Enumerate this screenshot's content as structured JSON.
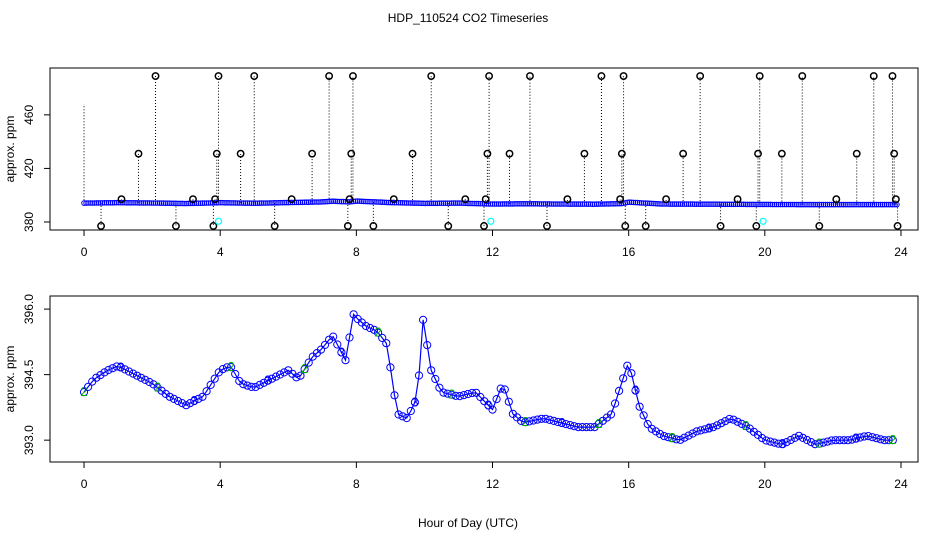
{
  "chart_data": [
    {
      "type": "scatter",
      "title": "HDP_110524  CO2 Timeseries",
      "xlabel": "",
      "ylabel": "approx. ppm",
      "xlim": [
        -1,
        24.5
      ],
      "ylim": [
        374,
        495
      ],
      "x_ticks": [
        0,
        4,
        8,
        12,
        16,
        20,
        24
      ],
      "x_tick_labels": [
        "0",
        "4",
        "8",
        "12",
        "16",
        "20",
        "24"
      ],
      "y_ticks": [
        380,
        420,
        460
      ],
      "y_tick_labels": [
        "380",
        "420",
        "460"
      ],
      "colors": {
        "main_series": "#0000ff",
        "outliers": "#000000",
        "cyan_marks": "#00ffff",
        "drop_lines": "#000000"
      },
      "series": [
        {
          "name": "baseline",
          "x": [
            0,
            1,
            2,
            3,
            4,
            5,
            6,
            7,
            7.3,
            7.8,
            8,
            9,
            10,
            11,
            12,
            13,
            14,
            15,
            15.8,
            16,
            17,
            18,
            19,
            20,
            21,
            22,
            23,
            23.8
          ],
          "values": [
            394.1,
            394.4,
            394.2,
            393.8,
            394.4,
            394.0,
            394.5,
            395.0,
            395.5,
            395.0,
            395.6,
            394.5,
            393.9,
            394.1,
            393.4,
            393.6,
            393.4,
            393.3,
            393.7,
            394.8,
            393.4,
            393.3,
            393.2,
            393.1,
            393.0,
            393.0,
            393.0,
            393.0
          ]
        },
        {
          "name": "outliers",
          "x": [
            0.5,
            1.1,
            1.6,
            2.1,
            2.7,
            3.2,
            3.8,
            3.85,
            3.9,
            3.95,
            4.6,
            5.0,
            5.6,
            6.1,
            6.7,
            7.2,
            7.75,
            7.8,
            7.85,
            7.9,
            8.5,
            9.1,
            9.65,
            10.2,
            10.7,
            11.2,
            11.75,
            11.8,
            11.85,
            11.9,
            12.5,
            13.1,
            13.6,
            14.2,
            14.7,
            15.2,
            15.75,
            15.8,
            15.85,
            15.9,
            16.5,
            17.1,
            17.6,
            18.1,
            18.7,
            19.2,
            19.75,
            19.8,
            19.85,
            20.5,
            21.1,
            21.6,
            22.1,
            22.7,
            23.2,
            23.75,
            23.8,
            23.85,
            23.9
          ],
          "values": [
            377,
            397,
            431,
            489,
            377,
            397,
            377,
            397,
            431,
            489,
            431,
            489,
            377,
            397,
            431,
            489,
            377,
            397,
            431,
            489,
            377,
            397,
            431,
            489,
            377,
            397,
            377,
            397,
            431,
            489,
            431,
            489,
            377,
            397,
            431,
            489,
            397,
            431,
            489,
            377,
            377,
            397,
            431,
            489,
            377,
            397,
            377,
            431,
            489,
            431,
            489,
            377,
            397,
            431,
            489,
            489,
            431,
            397,
            377
          ]
        },
        {
          "name": "cyan",
          "x": [
            3.95,
            11.95,
            19.95
          ],
          "values": [
            380.5,
            380.5,
            380.5
          ]
        }
      ]
    },
    {
      "type": "line",
      "title": "",
      "xlabel": "Hour of Day (UTC)",
      "ylabel": "approx. ppm",
      "xlim": [
        -1,
        24.5
      ],
      "ylim": [
        392.5,
        396.3
      ],
      "x_ticks": [
        0,
        4,
        8,
        12,
        16,
        20,
        24
      ],
      "x_tick_labels": [
        "0",
        "4",
        "8",
        "12",
        "16",
        "20",
        "24"
      ],
      "y_ticks": [
        393.0,
        394.5,
        396.0
      ],
      "y_tick_labels": [
        "393.0",
        "394.5",
        "396.0"
      ],
      "marker_glyphs": [
        "2",
        "3"
      ],
      "colors": {
        "line": "#0000ff",
        "marker_2": "#00b000",
        "marker_3": "#0000ff"
      },
      "series": [
        {
          "name": "co2",
          "x": [
            0,
            0.3,
            0.7,
            1.0,
            1.5,
            2.0,
            2.5,
            3.0,
            3.5,
            4.0,
            4.3,
            4.6,
            5.0,
            5.5,
            6.0,
            6.3,
            6.7,
            7.0,
            7.3,
            7.5,
            7.7,
            7.9,
            8.0,
            8.3,
            8.6,
            8.9,
            9.2,
            9.5,
            9.8,
            9.95,
            10.2,
            10.5,
            11.0,
            11.5,
            12.0,
            12.3,
            12.6,
            12.9,
            13.5,
            14.0,
            14.5,
            15.0,
            15.5,
            16.0,
            16.3,
            16.6,
            17.0,
            17.5,
            18.0,
            18.5,
            19.0,
            19.5,
            20.0,
            20.5,
            21.0,
            21.5,
            22.0,
            22.5,
            23.0,
            23.5,
            23.8
          ],
          "values": [
            394.1,
            394.4,
            394.6,
            394.7,
            394.5,
            394.3,
            394.0,
            393.8,
            394.0,
            394.6,
            394.7,
            394.3,
            394.2,
            394.4,
            394.6,
            394.4,
            394.9,
            395.1,
            395.4,
            395.1,
            394.8,
            395.9,
            395.8,
            395.6,
            395.5,
            395.2,
            393.6,
            393.5,
            394.0,
            395.8,
            394.6,
            394.1,
            394.0,
            394.1,
            393.7,
            394.3,
            393.6,
            393.4,
            393.5,
            393.4,
            393.3,
            393.3,
            393.6,
            394.8,
            393.8,
            393.3,
            393.1,
            393.0,
            393.2,
            393.3,
            393.5,
            393.3,
            393.0,
            392.9,
            393.1,
            392.9,
            393.0,
            393.0,
            393.1,
            393.0,
            393.0
          ]
        }
      ]
    }
  ]
}
